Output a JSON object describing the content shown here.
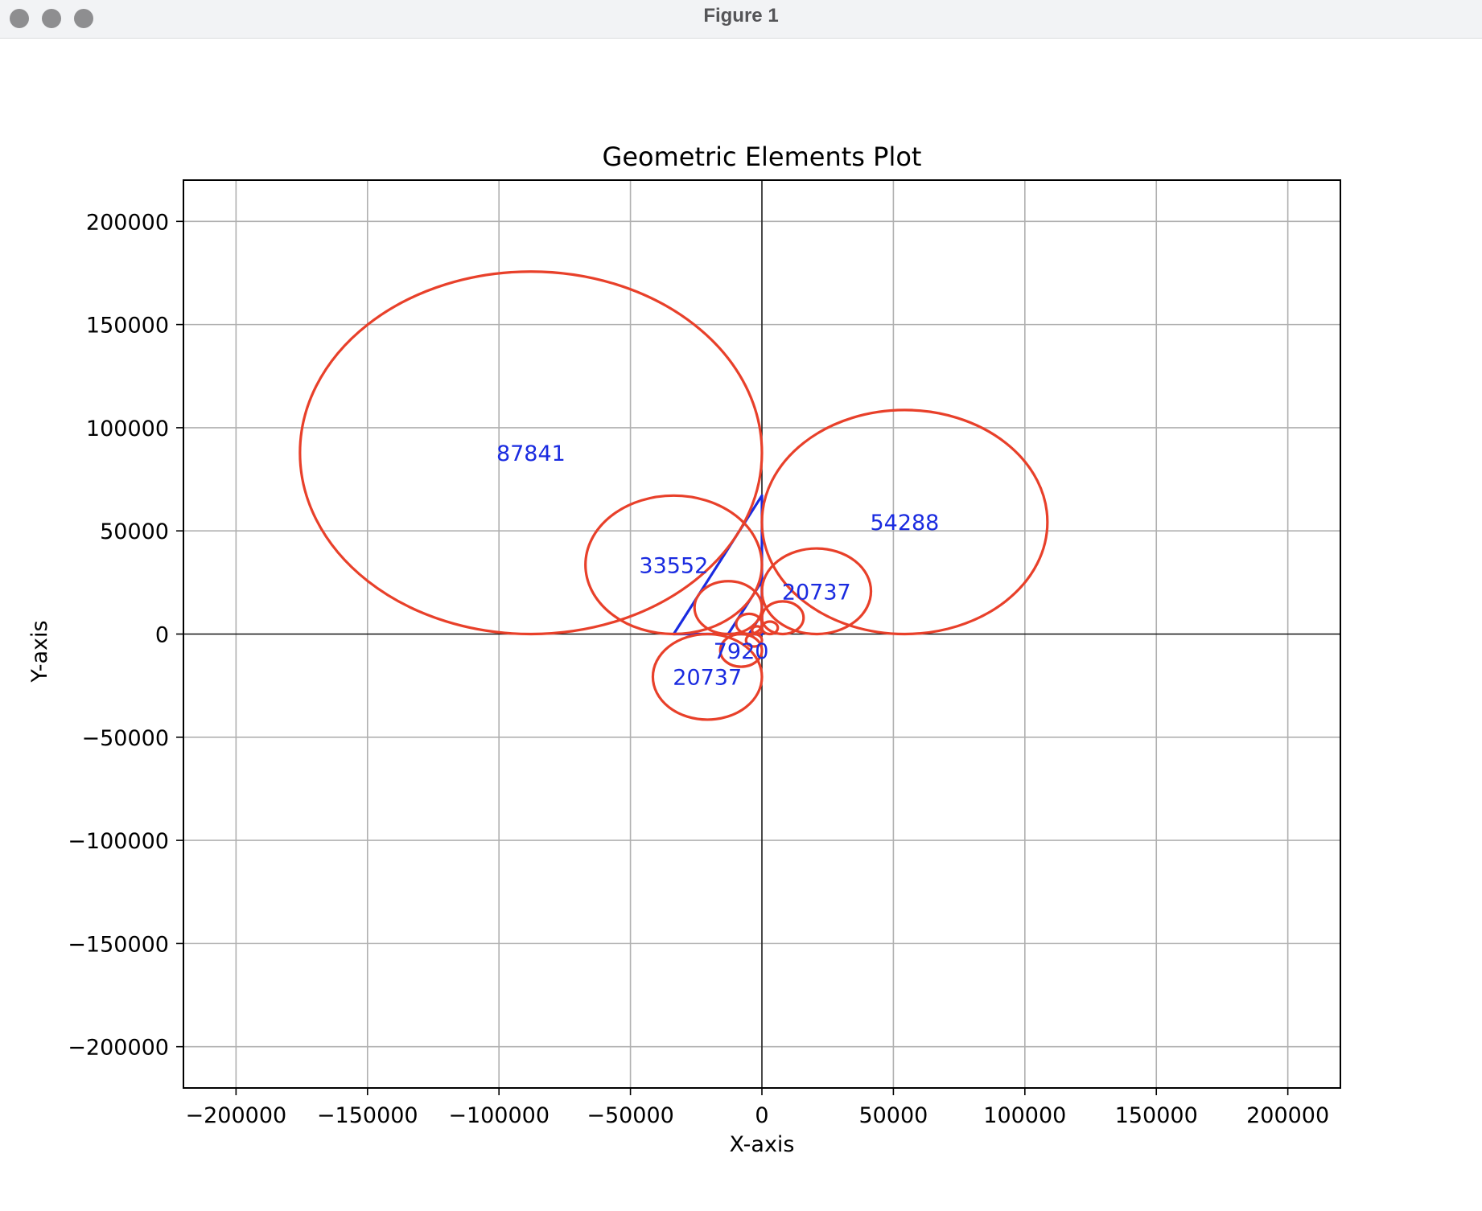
{
  "window": {
    "title": "Figure 1"
  },
  "chart_data": {
    "type": "scatter",
    "title": "Geometric Elements Plot",
    "xlabel": "X-axis",
    "ylabel": "Y-axis",
    "xlim": [
      -220000,
      220000
    ],
    "ylim": [
      -220000,
      220000
    ],
    "xticks": [
      -200000,
      -150000,
      -100000,
      -50000,
      0,
      50000,
      100000,
      150000,
      200000
    ],
    "yticks": [
      -200000,
      -150000,
      -100000,
      -50000,
      0,
      50000,
      100000,
      150000,
      200000
    ],
    "grid": true,
    "circle_color": "#e8402a",
    "triangle_color": "#1a2be0",
    "label_color": "#1a2be0",
    "circles": [
      {
        "cx": -87841,
        "cy": 87841,
        "r": 87841,
        "label": "87841"
      },
      {
        "cx": 54288,
        "cy": 54288,
        "r": 54288,
        "label": "54288"
      },
      {
        "cx": -33552,
        "cy": 33552,
        "r": 33552,
        "label": "33552"
      },
      {
        "cx": 20737,
        "cy": 20737,
        "r": 20737,
        "label": "20737"
      },
      {
        "cx": -20737,
        "cy": -20737,
        "r": 20737,
        "label": "20737"
      },
      {
        "cx": -12816,
        "cy": 12816,
        "r": 12816,
        "label": ""
      },
      {
        "cx": 7920,
        "cy": 7920,
        "r": 7920,
        "label": ""
      },
      {
        "cx": -7920,
        "cy": -7920,
        "r": 7920,
        "label": "7920"
      },
      {
        "cx": -4896,
        "cy": 4896,
        "r": 4896,
        "label": ""
      },
      {
        "cx": 3024,
        "cy": 3024,
        "r": 3024,
        "label": ""
      },
      {
        "cx": -3024,
        "cy": -3024,
        "r": 3024,
        "label": ""
      },
      {
        "cx": -1872,
        "cy": 1872,
        "r": 1872,
        "label": ""
      }
    ],
    "triangles": [
      [
        [
          -33552,
          0
        ],
        [
          0,
          0
        ],
        [
          0,
          67104
        ]
      ],
      [
        [
          -12816,
          0
        ],
        [
          0,
          0
        ],
        [
          0,
          25632
        ]
      ],
      [
        [
          -4896,
          0
        ],
        [
          0,
          0
        ],
        [
          0,
          9792
        ]
      ]
    ]
  }
}
